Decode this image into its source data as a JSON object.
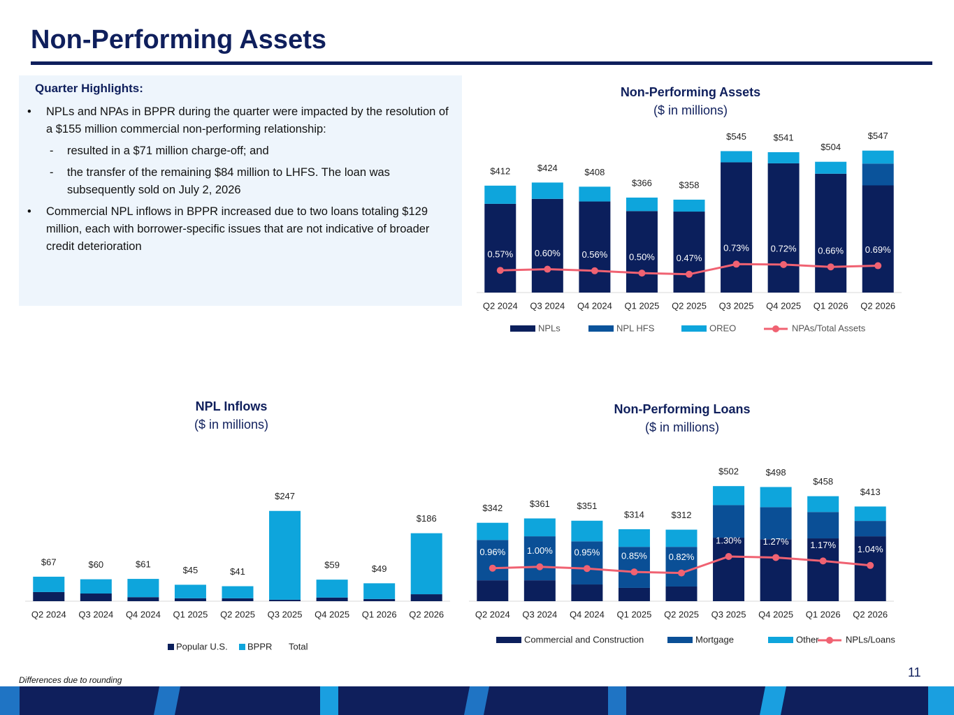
{
  "title": "Non-Performing Assets",
  "highlights": {
    "heading": "Quarter Highlights:",
    "bullets": [
      {
        "text": "NPLs and NPAs in BPPR during the quarter were impacted by the resolution of a $155 million commercial non-performing relationship:",
        "sub": [
          "resulted in a $71 million charge-off; and",
          "the transfer of the remaining $84 million to LHFS. The loan was subsequently sold on July 2, 2026"
        ]
      },
      {
        "text": "Commercial NPL inflows in BPPR increased due to two loans totaling $129 million, each with borrower-specific issues that are not indicative of broader credit deterioration"
      }
    ]
  },
  "footnote": "Differences due to rounding",
  "page_number": "11",
  "chart_data": [
    {
      "type": "bar",
      "stacked": true,
      "title": "Non-Performing Assets",
      "subtitle": "($ in millions)",
      "categories": [
        "Q2 2024",
        "Q3 2024",
        "Q4 2024",
        "Q1 2025",
        "Q2 2025",
        "Q3 2025",
        "Q4 2025",
        "Q1 2026",
        "Q2 2026"
      ],
      "series": [
        {
          "name": "NPLs",
          "color": "#0b1f5c",
          "values": [
            342,
            361,
            351,
            314,
            312,
            502,
            498,
            458,
            413
          ]
        },
        {
          "name": "NPL HFS",
          "color": "#0a539b",
          "values": [
            0,
            0,
            0,
            0,
            0,
            0,
            0,
            0,
            84
          ]
        },
        {
          "name": "OREO",
          "color": "#0ea5dc",
          "values": [
            70,
            63,
            57,
            52,
            46,
            43,
            43,
            46,
            50
          ]
        },
        {
          "name": "NPAs/Total Assets",
          "type": "line",
          "axis": "y2",
          "color": "#f06272",
          "values": [
            0.57,
            0.6,
            0.56,
            0.5,
            0.47,
            0.73,
            0.72,
            0.66,
            0.69
          ],
          "value_labels": [
            "0.57%",
            "0.60%",
            "0.56%",
            "0.50%",
            "0.47%",
            "0.73%",
            "0.72%",
            "0.66%",
            "0.69%"
          ]
        }
      ],
      "totals": {
        "values": [
          412,
          424,
          408,
          366,
          358,
          545,
          541,
          504,
          547
        ],
        "value_labels": [
          "$412",
          "$424",
          "$408",
          "$366",
          "$358",
          "$545",
          "$541",
          "$504",
          "$547"
        ]
      },
      "ylim": [
        0,
        600
      ],
      "y2lim": [
        0,
        4
      ]
    },
    {
      "type": "bar",
      "stacked": true,
      "title": "NPL Inflows",
      "subtitle": "($ in millions)",
      "categories": [
        "Q2 2024",
        "Q3 2024",
        "Q4 2024",
        "Q1 2025",
        "Q2 2025",
        "Q3 2025",
        "Q4 2025",
        "Q1 2026",
        "Q2 2026"
      ],
      "series": [
        {
          "name": "Popular U.S.",
          "color": "#0b1f5c",
          "values": [
            25,
            21,
            11,
            8,
            8,
            4,
            10,
            6,
            19
          ]
        },
        {
          "name": "BPPR",
          "color": "#0ea5dc",
          "values": [
            42,
            39,
            50,
            37,
            33,
            243,
            49,
            43,
            167
          ]
        },
        {
          "name": "Total",
          "values": [
            67,
            60,
            61,
            45,
            41,
            247,
            59,
            49,
            186
          ],
          "value_labels": [
            "$67",
            "$60",
            "$61",
            "$45",
            "$41",
            "$247",
            "$59",
            "$49",
            "$186"
          ]
        }
      ],
      "ylim": [
        0,
        300
      ]
    },
    {
      "type": "bar",
      "stacked": true,
      "title": "Non-Performing Loans",
      "subtitle": "($ in millions)",
      "categories": [
        "Q2 2024",
        "Q3 2024",
        "Q4 2024",
        "Q1 2025",
        "Q2 2025",
        "Q3 2025",
        "Q4 2025",
        "Q1 2026",
        "Q2 2026"
      ],
      "series": [
        {
          "name": "Commercial and Construction",
          "color": "#0b1f5c",
          "values": [
            91,
            91,
            73,
            58,
            64,
            277,
            270,
            274,
            283
          ]
        },
        {
          "name": "Mortgage",
          "color": "#0a4f96",
          "values": [
            176,
            192,
            188,
            179,
            173,
            142,
            140,
            115,
            67
          ]
        },
        {
          "name": "Other",
          "color": "#0ea5dc",
          "values": [
            75,
            78,
            90,
            77,
            75,
            83,
            88,
            69,
            63
          ]
        },
        {
          "name": "NPLs/Loans",
          "type": "line",
          "axis": "y2",
          "color": "#f06272",
          "values": [
            0.96,
            1.0,
            0.95,
            0.85,
            0.82,
            1.3,
            1.27,
            1.17,
            1.04
          ],
          "value_labels": [
            "0.96%",
            "1.00%",
            "0.95%",
            "0.85%",
            "0.82%",
            "1.30%",
            "1.27%",
            "1.17%",
            "1.04%"
          ]
        }
      ],
      "totals": {
        "values": [
          342,
          361,
          351,
          314,
          312,
          502,
          498,
          458,
          413
        ],
        "value_labels": [
          "$342",
          "$361",
          "$351",
          "$314",
          "$312",
          "$502",
          "$498",
          "$458",
          "$413"
        ]
      },
      "ylim": [
        0,
        600
      ],
      "y2lim": [
        0,
        4
      ]
    }
  ]
}
